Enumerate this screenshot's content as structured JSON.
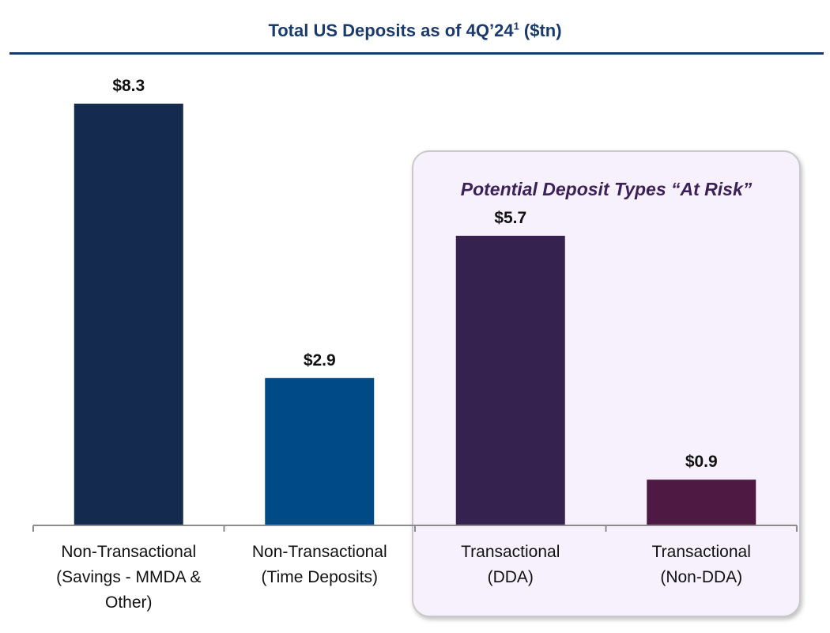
{
  "title": {
    "main": "Total US Deposits as of 4Q’24",
    "superscript": "1",
    "unit": " ($tn)"
  },
  "risk_panel": {
    "label": "Potential Deposit Types “At Risk”",
    "background": "#f6f1fc"
  },
  "colors": {
    "title": "#1a3a6b",
    "bars": [
      "#152a4f",
      "#004b87",
      "#36224e",
      "#4e1a43"
    ]
  },
  "chart_data": {
    "type": "bar",
    "title": "Total US Deposits as of 4Q’24 ($tn)",
    "categories": [
      "Non-Transactional\n(Savings - MMDA &\nOther)",
      "Non-Transactional\n(Time Deposits)",
      "Transactional\n(DDA)",
      "Transactional\n(Non-DDA)"
    ],
    "values": [
      8.3,
      2.9,
      5.7,
      0.9
    ],
    "data_labels": [
      "$8.3",
      "$2.9",
      "$5.7",
      "$0.9"
    ],
    "xlabel": "",
    "ylabel": "",
    "ylim": [
      0,
      8.3
    ],
    "grid": false,
    "legend": "none"
  }
}
